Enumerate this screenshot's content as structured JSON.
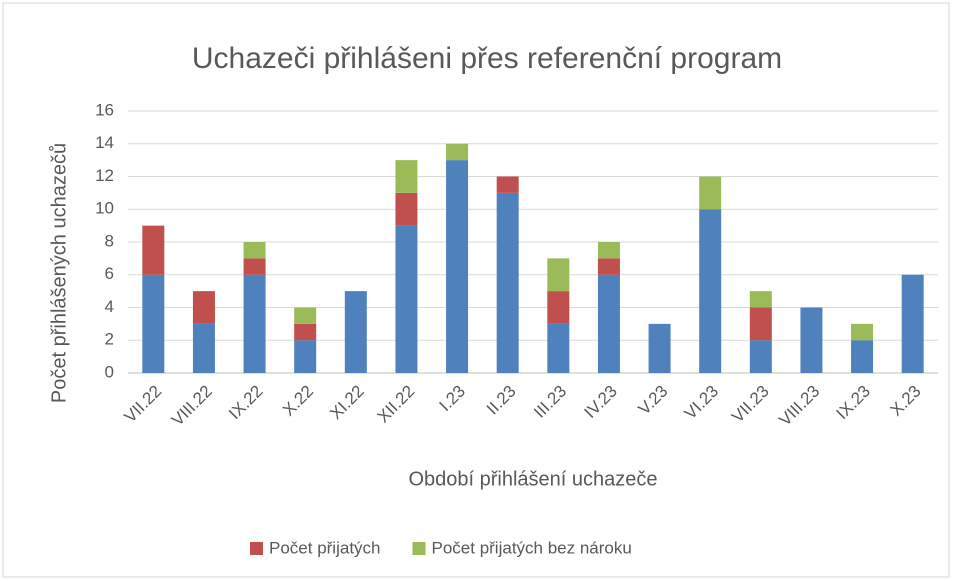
{
  "chart_data": {
    "type": "stacked_bar",
    "title": "Uchazeči přihlášeni přes referenční program",
    "x_label": "Období přihlášení uchazeče",
    "y_label": "Počet přihlášených uchazečů",
    "categories": [
      "VII.22",
      "VIII.22",
      "IX.22",
      "X.22",
      "XI.22",
      "XII.22",
      "I.23",
      "II.23",
      "III.23",
      "IV.23",
      "V.23",
      "VI.23",
      "VII.23",
      "VIII.23",
      "IX.23",
      "X.23"
    ],
    "series": [
      {
        "color": "#4f81bd",
        "values": [
          6,
          3,
          6,
          2,
          5,
          9,
          13,
          11,
          3,
          6,
          3,
          10,
          2,
          4,
          2,
          6
        ]
      },
      {
        "name": "Počet přijatých",
        "color": "#c0504d",
        "values": [
          3,
          2,
          1,
          1,
          0,
          2,
          0,
          1,
          2,
          1,
          0,
          0,
          2,
          0,
          0,
          0
        ]
      },
      {
        "name": "Počet přijatých bez nároku",
        "color": "#9bbb59",
        "values": [
          0,
          0,
          1,
          1,
          0,
          2,
          1,
          0,
          2,
          1,
          0,
          2,
          1,
          0,
          1,
          0
        ]
      }
    ],
    "ylim": [
      0,
      16
    ],
    "yticks": [
      0,
      2,
      4,
      6,
      8,
      10,
      12,
      14,
      16
    ],
    "grid": true,
    "legend": "bottom"
  }
}
